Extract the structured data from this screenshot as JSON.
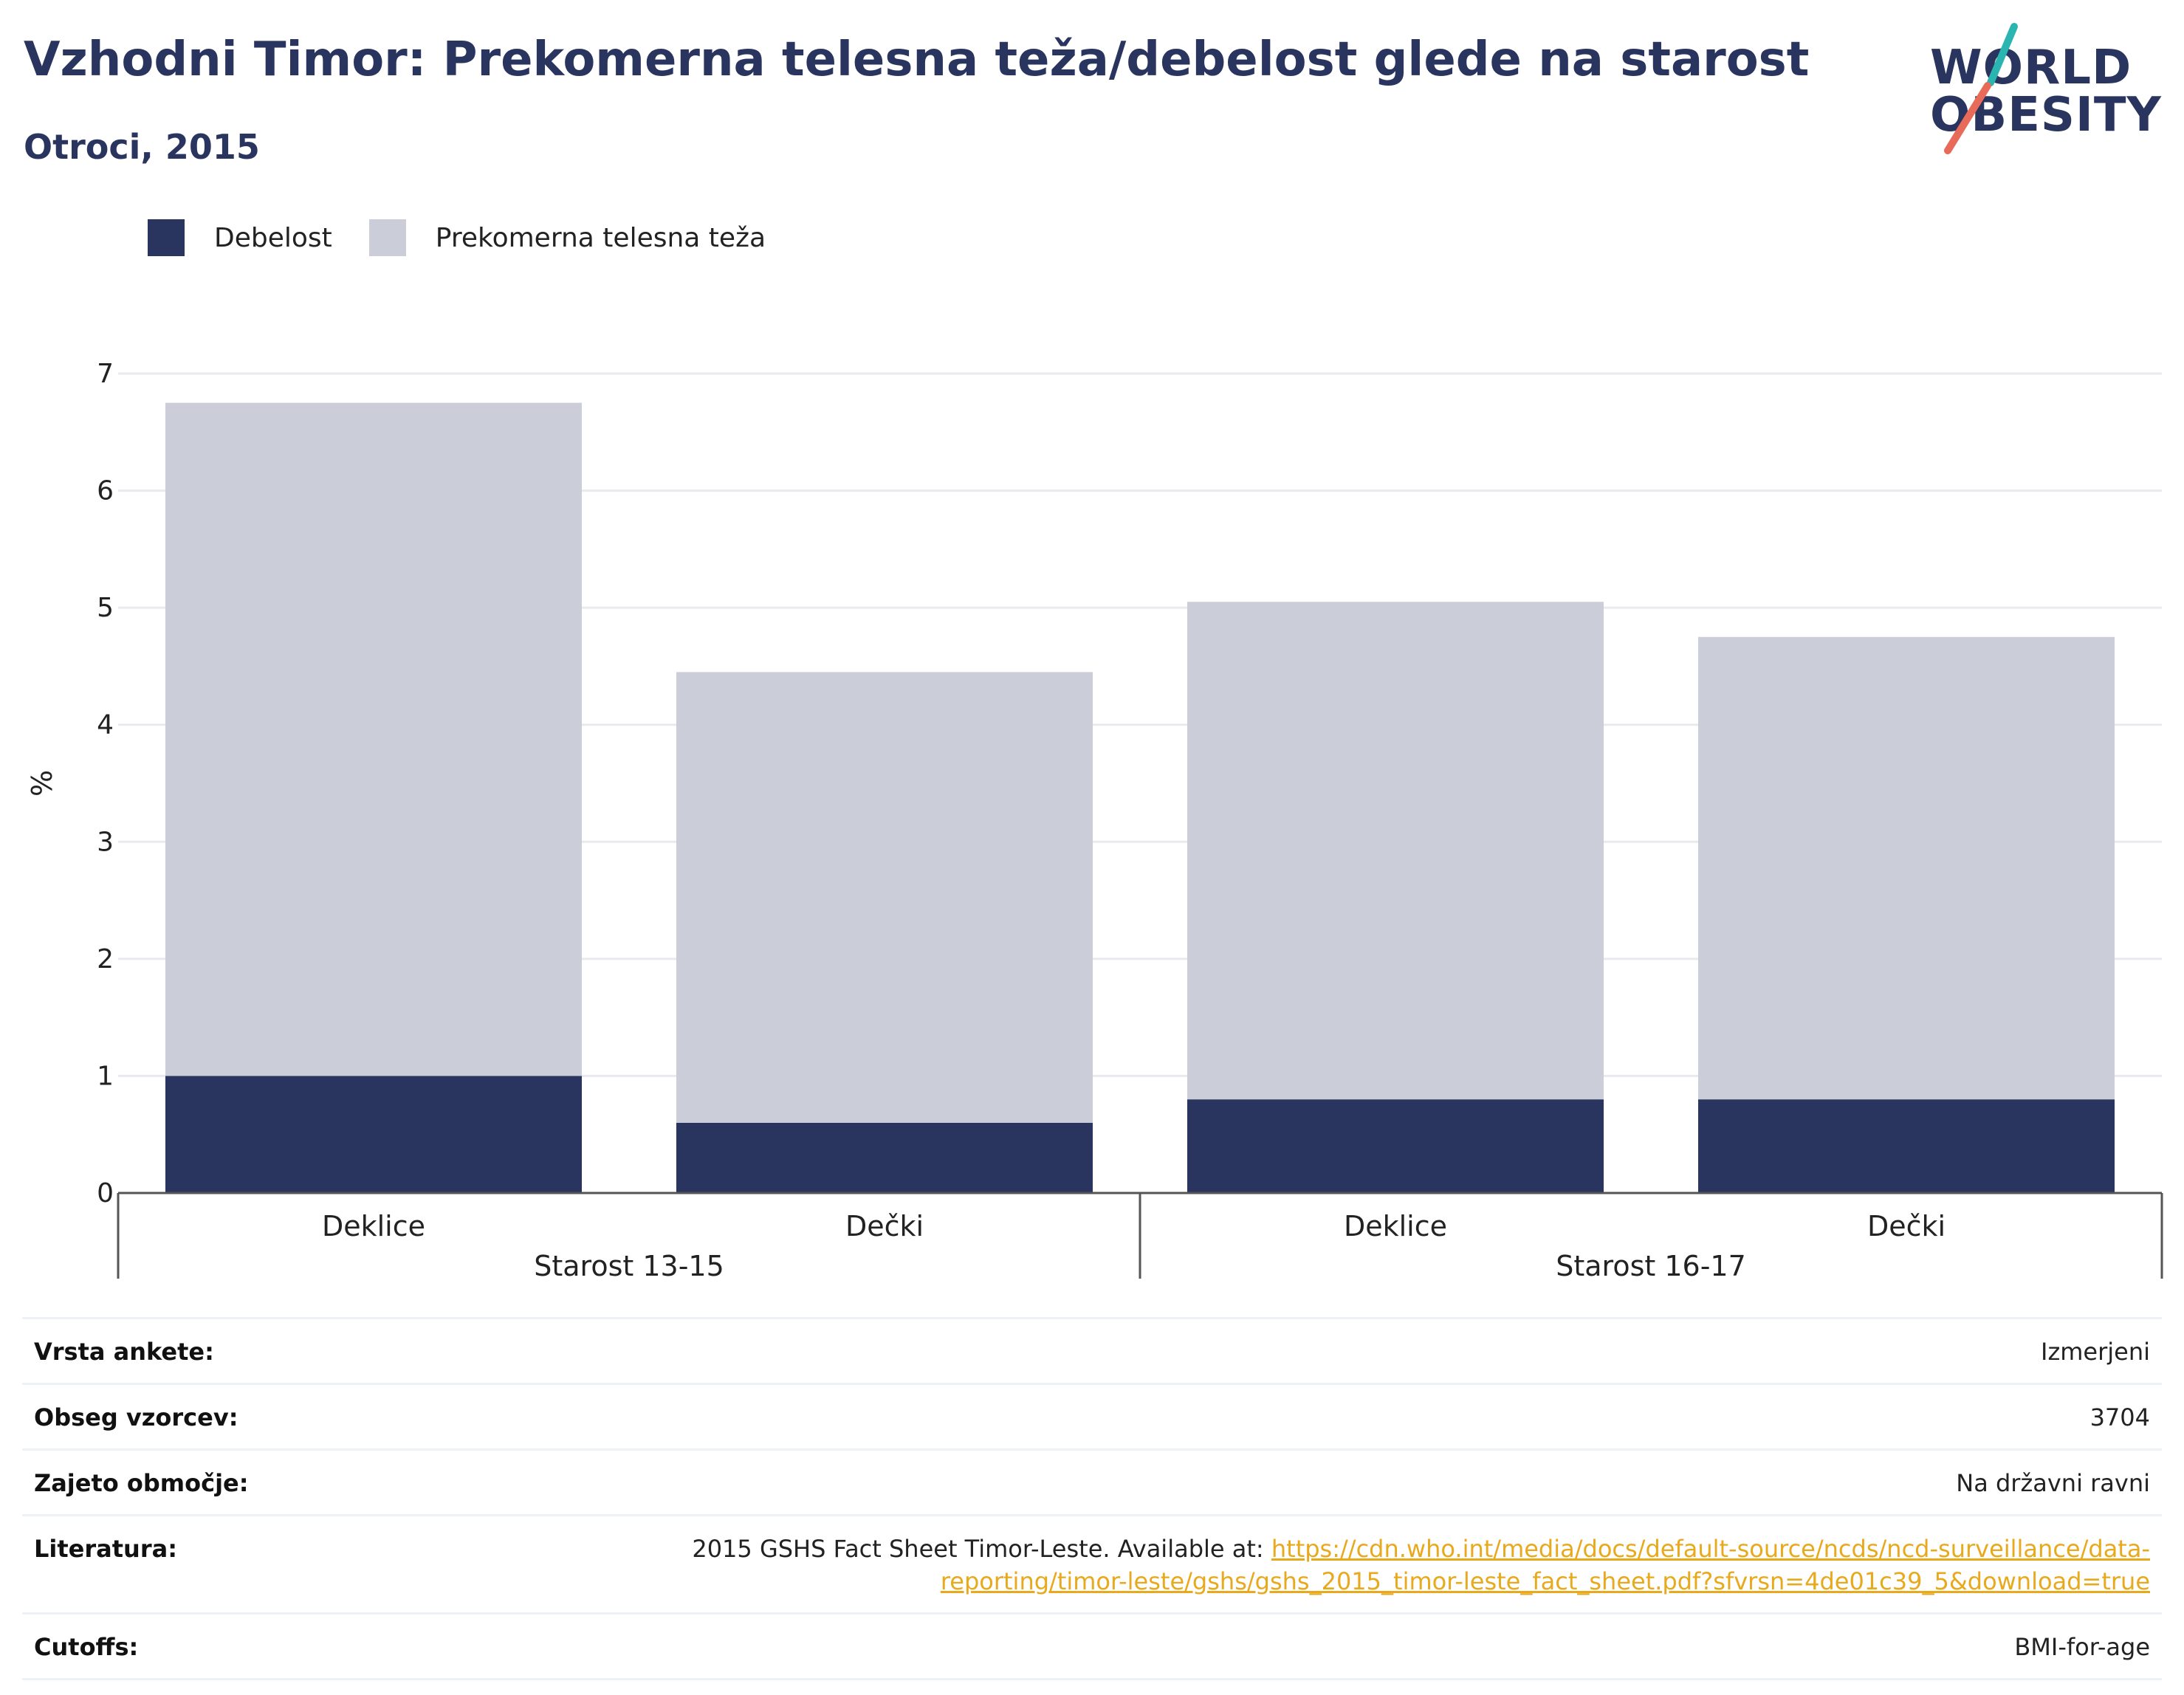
{
  "header": {
    "title": "Vzhodni Timor: Prekomerna telesna teža/debelost glede na starost",
    "subtitle": "Otroci, 2015"
  },
  "logo": {
    "line1": "WORLD",
    "line2": "OBESITY",
    "accent_teal": "#2bb5b0",
    "accent_coral": "#e86a58"
  },
  "legend": [
    {
      "label": "Debelost",
      "color": "#29355f"
    },
    {
      "label": "Prekomerna telesna teža",
      "color": "#cbcdd8"
    }
  ],
  "chart_data": {
    "type": "bar",
    "stacked": true,
    "ylabel": "%",
    "ylim": [
      0,
      7
    ],
    "yticks": [
      0,
      1,
      2,
      3,
      4,
      5,
      6,
      7
    ],
    "grid": true,
    "legend_position": "top-left",
    "categories": [
      "Deklice",
      "Dečki",
      "Deklice",
      "Dečki"
    ],
    "groups": [
      {
        "label": "Starost 13-15",
        "categories": [
          "Deklice",
          "Dečki"
        ]
      },
      {
        "label": "Starost 16-17",
        "categories": [
          "Deklice",
          "Dečki"
        ]
      }
    ],
    "series": [
      {
        "name": "Debelost",
        "color": "#29355f",
        "values": [
          1.0,
          0.6,
          0.8,
          0.8
        ]
      },
      {
        "name": "Prekomerna telesna teža",
        "color": "#cbcdd8",
        "values": [
          5.75,
          3.85,
          4.25,
          3.95
        ]
      }
    ]
  },
  "info": {
    "rows": [
      {
        "label": "Vrsta ankete:",
        "value": "Izmerjeni"
      },
      {
        "label": "Obseg vzorcev:",
        "value": "3704"
      },
      {
        "label": "Zajeto območje:",
        "value": "Na državni ravni"
      },
      {
        "label": "Literatura:",
        "value": "2015 GSHS Fact Sheet Timor-Leste. Available at: ",
        "link": "https://cdn.who.int/media/docs/default-source/ncds/ncd-surveillance/data-reporting/timor-leste/gshs/gshs_2015_timor-leste_fact_sheet.pdf?sfvrsn=4de01c39_5&download=true"
      },
      {
        "label": "Cutoffs:",
        "value": "BMI-for-age"
      }
    ]
  }
}
